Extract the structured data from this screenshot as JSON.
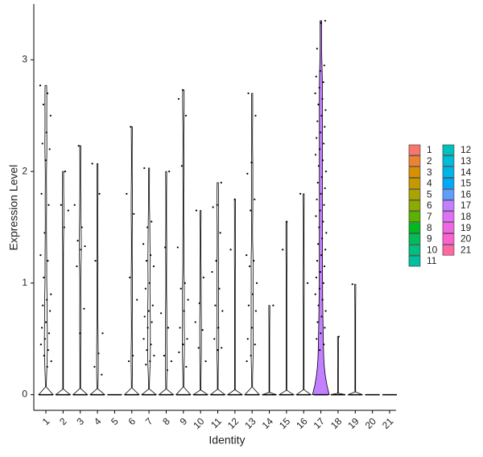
{
  "chart_data": {
    "type": "violin",
    "x_label": "Identity",
    "y_label": "Expression Level",
    "categories": [
      "1",
      "2",
      "3",
      "4",
      "5",
      "6",
      "7",
      "8",
      "9",
      "10",
      "11",
      "12",
      "13",
      "14",
      "15",
      "16",
      "17",
      "18",
      "19",
      "20",
      "21"
    ],
    "values": [
      2.77,
      2.0,
      2.23,
      2.07,
      0,
      2.4,
      2.03,
      2.0,
      2.73,
      1.65,
      1.9,
      1.75,
      2.7,
      0.8,
      1.55,
      1.8,
      3.35,
      0.52,
      0.99,
      0,
      0
    ],
    "points": [
      [
        2.77,
        2.7,
        2.6,
        2.5,
        2.35,
        2.25,
        2.2,
        2.1,
        1.8,
        1.7,
        1.45,
        1.25,
        1.2,
        1.05,
        0.9,
        0.85,
        0.8,
        0.75,
        0.65,
        0.6,
        0.55,
        0.5,
        0.45,
        0.4,
        0.35,
        0.3,
        0.25
      ],
      [
        2.0,
        1.7,
        1.65,
        1.5
      ],
      [
        2.23,
        1.7,
        1.5,
        1.38,
        1.33,
        1.3,
        1.15,
        0.77,
        0.55
      ],
      [
        2.07,
        1.8,
        1.2,
        0.55,
        0.37,
        0.25,
        0.18
      ],
      [],
      [
        2.4,
        1.8,
        1.62,
        1.05,
        0.85,
        0.35,
        0.3
      ],
      [
        2.03,
        1.55,
        1.5,
        1.35,
        1.25,
        1.2,
        1.15,
        1.0,
        0.95,
        0.8,
        0.75,
        0.7,
        0.65,
        0.6,
        0.5,
        0.45,
        0.4,
        0.35,
        0.3,
        0.27
      ],
      [
        2.0,
        1.32,
        0.73,
        0.6,
        0.35,
        0.3,
        0.22
      ],
      [
        2.73,
        2.65,
        2.5,
        2.05,
        1.32,
        1.0,
        0.95,
        0.85,
        0.75,
        0.6,
        0.5,
        0.45,
        0.38,
        0.25
      ],
      [
        1.65,
        1.05,
        0.82,
        0.65,
        0.58,
        0.42,
        0.3
      ],
      [
        1.9,
        1.7,
        1.68,
        1.45,
        1.2,
        1.1,
        0.95,
        0.8,
        0.75,
        0.6,
        0.5,
        0.42,
        0.4
      ],
      [
        1.75,
        1.3
      ],
      [
        2.7,
        2.5,
        2.08,
        1.98,
        1.75,
        1.65,
        1.25,
        1.2,
        1.15,
        1.0,
        0.9,
        0.8,
        0.75,
        0.6,
        0.5,
        0.45,
        0.35,
        0.3
      ],
      [
        0.8
      ],
      [
        1.55,
        1.3
      ],
      [
        1.8,
        1.0
      ],
      [
        3.35,
        3.33,
        3.1,
        2.95,
        2.9,
        2.85,
        2.8,
        2.75,
        2.7,
        2.65,
        2.6,
        2.55,
        2.5,
        2.45,
        2.4,
        2.35,
        2.3,
        2.25,
        2.2,
        2.15,
        2.1,
        2.05,
        2.0,
        1.95,
        1.9,
        1.85,
        1.8,
        1.75,
        1.7,
        1.65,
        1.6,
        1.55,
        1.5,
        1.45,
        1.4,
        1.35,
        1.3,
        1.25,
        1.2,
        1.15,
        1.1,
        1.05,
        1.0,
        0.95,
        0.9,
        0.85,
        0.8,
        0.75,
        0.7,
        0.65,
        0.6,
        0.55,
        0.5,
        0.45,
        0.4
      ],
      [
        0.52
      ],
      [
        0.99
      ],
      [],
      []
    ],
    "colors": [
      "#F8766D",
      "#EB8335",
      "#DA8F00",
      "#C49A00",
      "#AAA300",
      "#8AAB00",
      "#5BB300",
      "#00B81F",
      "#00BC59",
      "#00BF7F",
      "#00C0A0",
      "#00C0BD",
      "#00BCD6",
      "#00B4EA",
      "#00A8F8",
      "#619CFF",
      "#C27FFF",
      "#DF70F8",
      "#F166E3",
      "#FA62D2",
      "#FF67A4"
    ],
    "ylim": [
      -0.14,
      3.5
    ],
    "yticks": [
      0,
      1,
      2,
      3
    ]
  }
}
